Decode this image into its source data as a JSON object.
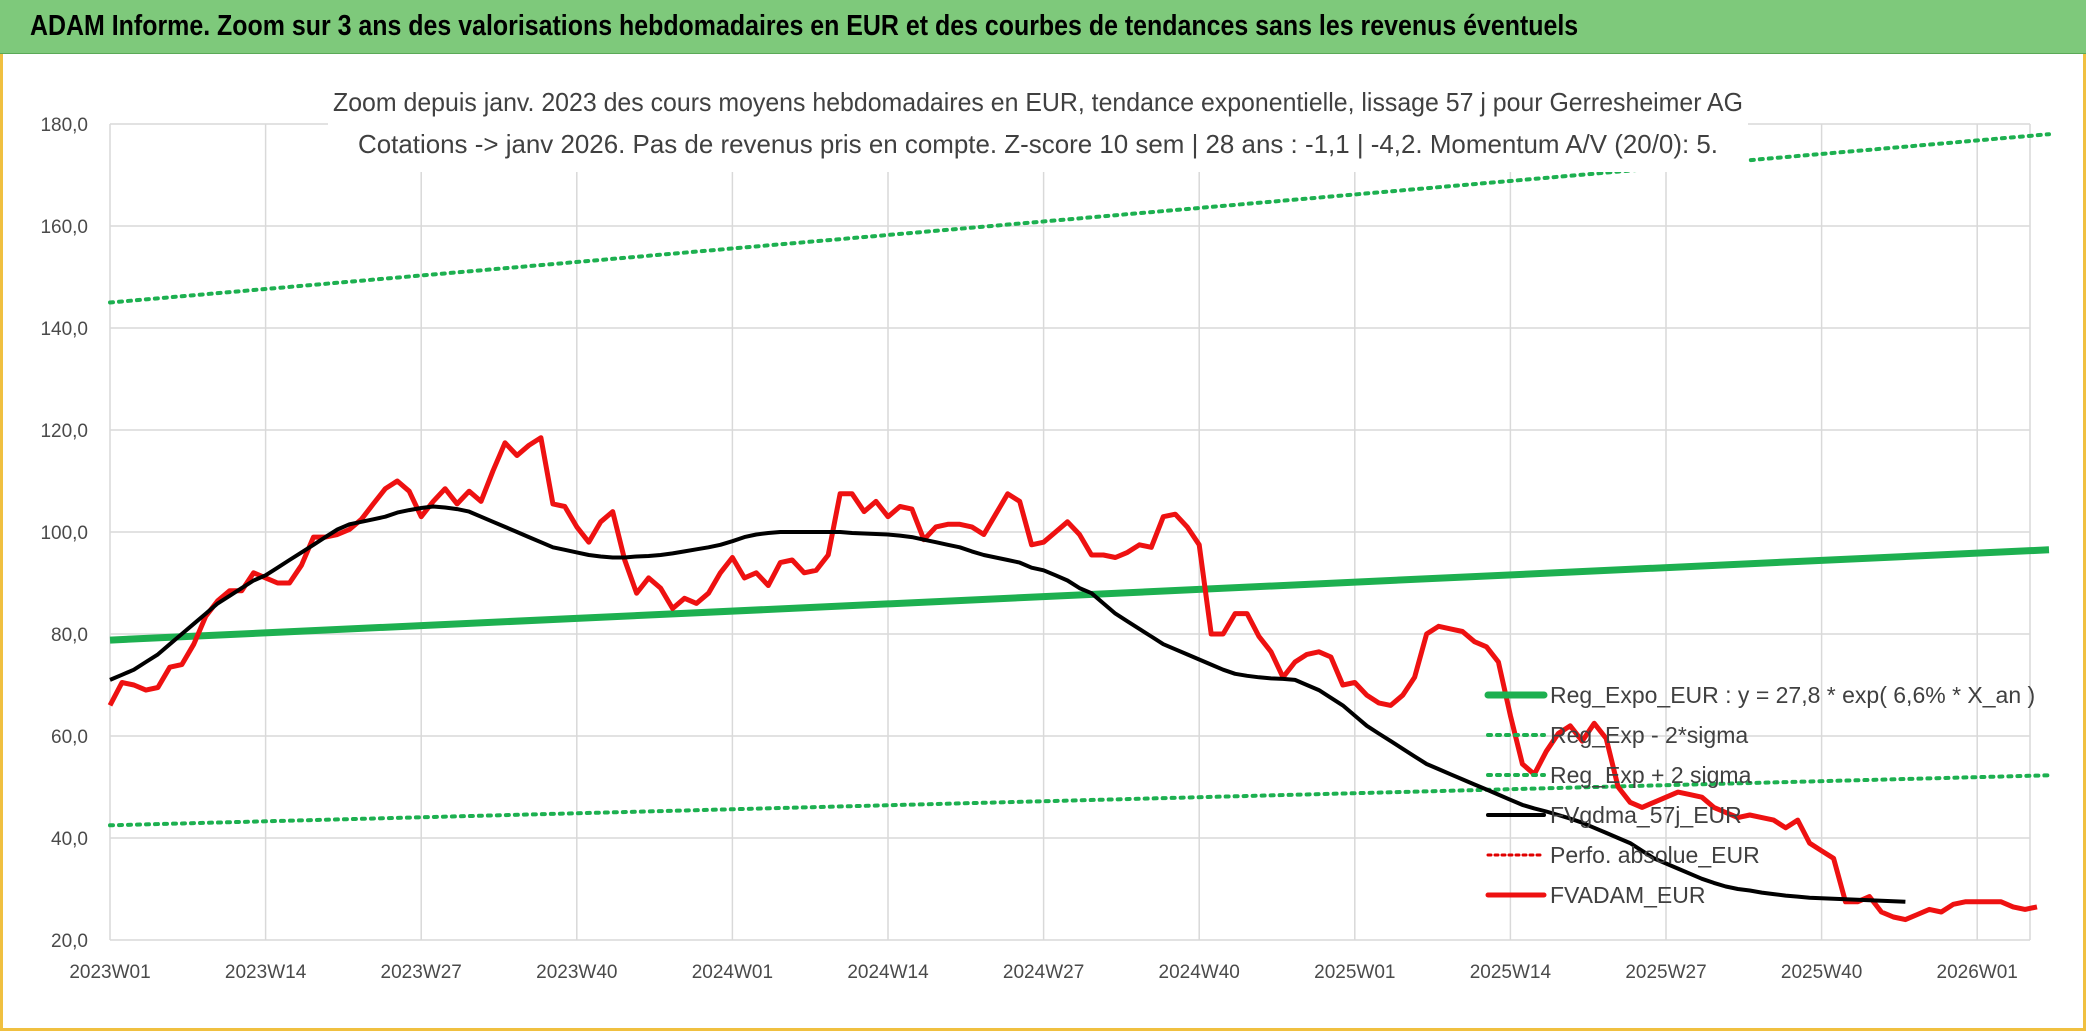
{
  "banner": {
    "title": "ADAM Informe. Zoom sur 3 ans des valorisations hebdomadaires en EUR et des courbes de tendances sans les revenus éventuels"
  },
  "colors": {
    "banner_bg": "#7ec97b",
    "frame_border": "#f0c040",
    "reg_expo": "#1db050",
    "sigma_bands": "#1db050",
    "fvgdma": "#000000",
    "perfo": "#e00000",
    "fvadam": "#ee1111",
    "grid": "#d9d9d9"
  },
  "chart_data": {
    "type": "line",
    "title_lines": [
      "Zoom depuis janv. 2023 des cours moyens hebdomadaires en EUR, tendance exponentielle, lissage 57 j pour Gerresheimer AG",
      "Cotations -> janv 2026. Pas de revenus pris en compte. Z-score 10 sem | 28 ans : -1,1 | -4,2. Momentum A/V (20/0): 5."
    ],
    "ylim": [
      20,
      180
    ],
    "y_ticks": [
      "180,0",
      "160,0",
      "140,0",
      "120,0",
      "100,0",
      "80,0",
      "60,0",
      "40,0",
      "20,0"
    ],
    "y_tick_values": [
      180,
      160,
      140,
      120,
      100,
      80,
      60,
      40,
      20
    ],
    "x_ticks": [
      "2023W01",
      "2023W14",
      "2023W27",
      "2023W40",
      "2024W01",
      "2024W14",
      "2024W27",
      "2024W40",
      "2025W01",
      "2025W14",
      "2025W27",
      "2025W40",
      "2026W01"
    ],
    "week_count": 163,
    "grid": true,
    "legend_position": "bottom-right",
    "series": [
      {
        "name": "Reg_Expo_EUR : y = 27,8 * exp( 6,6% *  X_an )",
        "style": "solid-thick",
        "values": [
          78.8,
          96.5
        ]
      },
      {
        "name": "Reg_Exp - 2*sigma",
        "style": "dotted",
        "values": [
          42.5,
          52.3
        ]
      },
      {
        "name": "Reg_Exp + 2 sigma",
        "style": "dotted",
        "values": [
          145.0,
          178.0
        ]
      },
      {
        "name": "FVgdma_57j_EUR",
        "style": "solid",
        "values": [
          71,
          72,
          73,
          74.5,
          76,
          78,
          80,
          82,
          84,
          86,
          87.5,
          89,
          90.5,
          91.5,
          93,
          94.5,
          96,
          97.5,
          99,
          100.5,
          101.5,
          102,
          102.5,
          103,
          103.8,
          104.3,
          104.7,
          105,
          104.8,
          104.5,
          104,
          103,
          102,
          101,
          100,
          99,
          98,
          97,
          96.5,
          96,
          95.5,
          95.2,
          95,
          95,
          95.2,
          95.3,
          95.5,
          95.8,
          96.2,
          96.6,
          97,
          97.5,
          98.2,
          99,
          99.5,
          99.8,
          100,
          100,
          100,
          100,
          100,
          100,
          99.8,
          99.7,
          99.6,
          99.5,
          99.3,
          99,
          98.5,
          98,
          97.5,
          97,
          96.2,
          95.5,
          95,
          94.5,
          94,
          93,
          92.5,
          91.5,
          90.5,
          89,
          88,
          86,
          84,
          82.5,
          81,
          79.5,
          78,
          77,
          76,
          75,
          74,
          73,
          72.2,
          71.8,
          71.5,
          71.3,
          71.2,
          71,
          70,
          69,
          67.5,
          66,
          64,
          62,
          60.5,
          59,
          57.5,
          56,
          54.5,
          53.5,
          52.5,
          51.5,
          50.5,
          49.5,
          48.5,
          47.5,
          46.5,
          45.8,
          45.2,
          44.5,
          43.8,
          43,
          42,
          41,
          40,
          39,
          37.5,
          36,
          35,
          34,
          33,
          32,
          31.2,
          30.5,
          30,
          29.7,
          29.3,
          29,
          28.7,
          28.5,
          28.3,
          28.2,
          28.1,
          28,
          27.9,
          27.8,
          27.7,
          27.6,
          27.5
        ]
      },
      {
        "name": "Perfo. absolue_EUR",
        "style": "dotted",
        "values": []
      },
      {
        "name": "FVADAM_EUR",
        "style": "solid-thick",
        "values": [
          66,
          70.5,
          70,
          69,
          69.5,
          73.5,
          74,
          78,
          83.5,
          86.5,
          88.5,
          88.5,
          92,
          91,
          90,
          90,
          93.5,
          99,
          99,
          99.5,
          100.5,
          102.5,
          105.5,
          108.5,
          110,
          108,
          103,
          106,
          108.5,
          105.5,
          108,
          106,
          112,
          117.5,
          115,
          117,
          118.5,
          105.5,
          105,
          101,
          98,
          102,
          104,
          94.5,
          88,
          91,
          89,
          85,
          87,
          86,
          88,
          92,
          95,
          91,
          92,
          89.5,
          94,
          94.5,
          92,
          92.5,
          95.5,
          107.5,
          107.5,
          104,
          106,
          103,
          105,
          104.5,
          98.5,
          101,
          101.5,
          101.5,
          101,
          99.5,
          103.5,
          107.5,
          106,
          97.5,
          98,
          100,
          102,
          99.5,
          95.5,
          95.5,
          95,
          96,
          97.5,
          97,
          103,
          103.5,
          101,
          97.5,
          80,
          80,
          84,
          84,
          79.5,
          76.5,
          71.5,
          74.5,
          76,
          76.5,
          75.5,
          70,
          70.5,
          68,
          66.5,
          66,
          68,
          71.5,
          80,
          81.5,
          81,
          80.5,
          78.5,
          77.5,
          74.5,
          64,
          54.5,
          52.5,
          57,
          60.5,
          62,
          59,
          62.5,
          59.5,
          50,
          47,
          46,
          47,
          48,
          49,
          48.5,
          48,
          46,
          45,
          44,
          44.5,
          44,
          43.5,
          42,
          43.5,
          39,
          37.5,
          36,
          27.5,
          27.5,
          28.5,
          25.5,
          24.5,
          24,
          25,
          26,
          25.5,
          27,
          27.5,
          27.5,
          27.5,
          27.5,
          26.5,
          26,
          26.5
        ]
      }
    ]
  }
}
